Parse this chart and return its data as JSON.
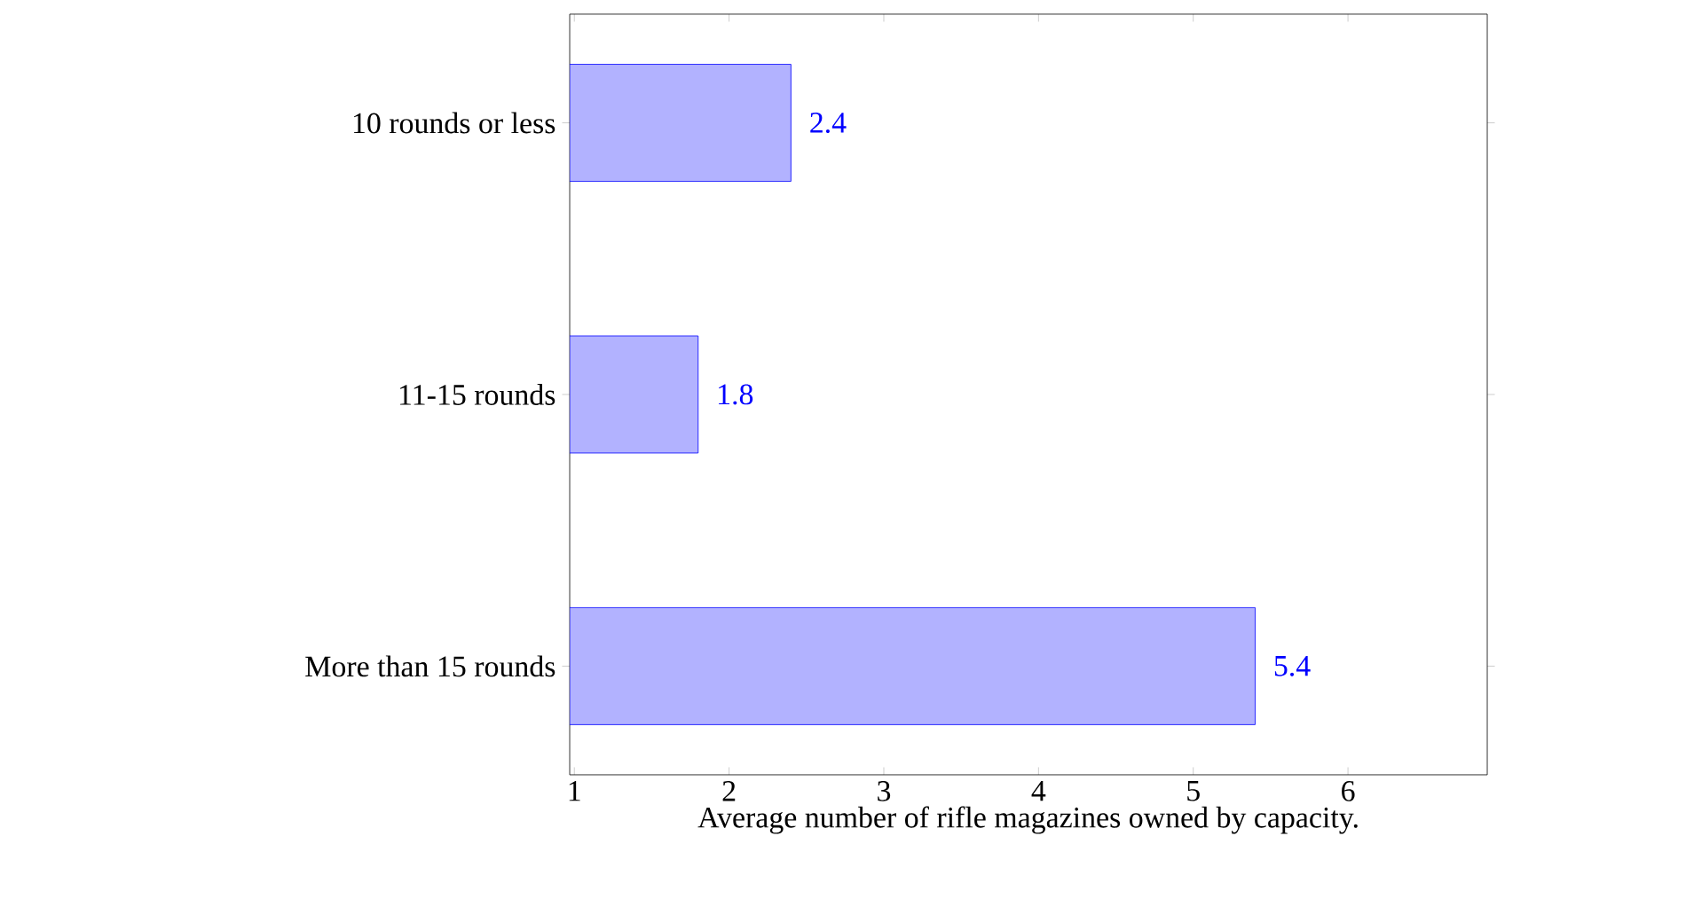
{
  "chart_data": {
    "type": "bar",
    "orientation": "horizontal",
    "categories": [
      "10 rounds or less",
      "11-15 rounds",
      "More than 15 rounds"
    ],
    "values": [
      2.4,
      1.8,
      5.4
    ],
    "color": "#0000ff",
    "data_labels": true,
    "xlim": [
      0.97,
      6.9
    ],
    "xticks": [
      1,
      2,
      3,
      4,
      5,
      6
    ],
    "xlabel": "Average number of rifle magazines owned by capacity."
  }
}
